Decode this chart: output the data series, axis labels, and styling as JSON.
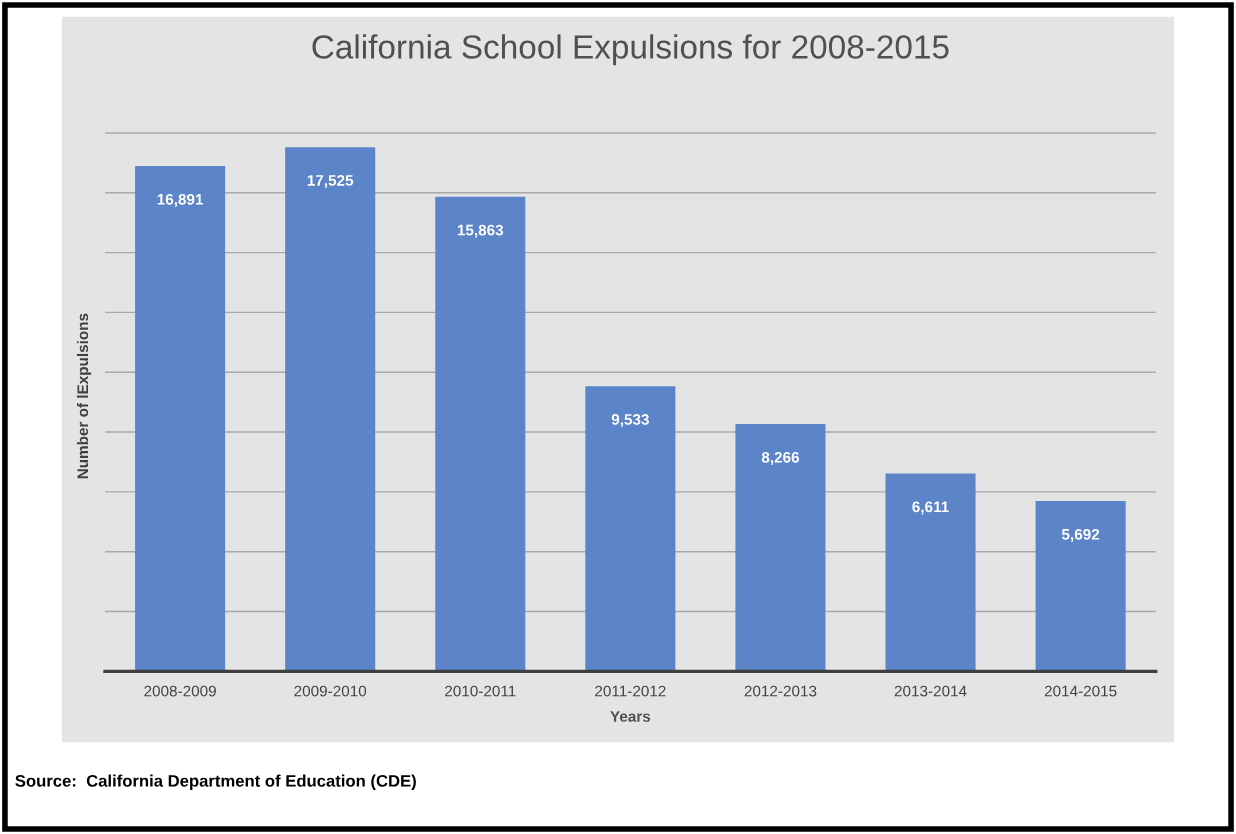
{
  "chart_data": {
    "type": "bar",
    "title": "California School Expulsions for 2008-2015",
    "xlabel": "Years",
    "ylabel": "Number of lExpulsions",
    "categories": [
      "2008-2009",
      "2009-2010",
      "2010-2011",
      "2011-2012",
      "2012-2013",
      "2013-2014",
      "2014-2015"
    ],
    "values": [
      16891,
      17525,
      15863,
      9533,
      8266,
      6611,
      5692
    ],
    "color": "#5b84c9",
    "value_labels": [
      "16,891",
      "17,525",
      "15,863",
      "9,533",
      "8,266",
      "6,611",
      "5,692"
    ],
    "tick_labels": "x",
    "grid": "y",
    "annotations": [
      "Source:  California Department of Education (CDE)"
    ]
  }
}
